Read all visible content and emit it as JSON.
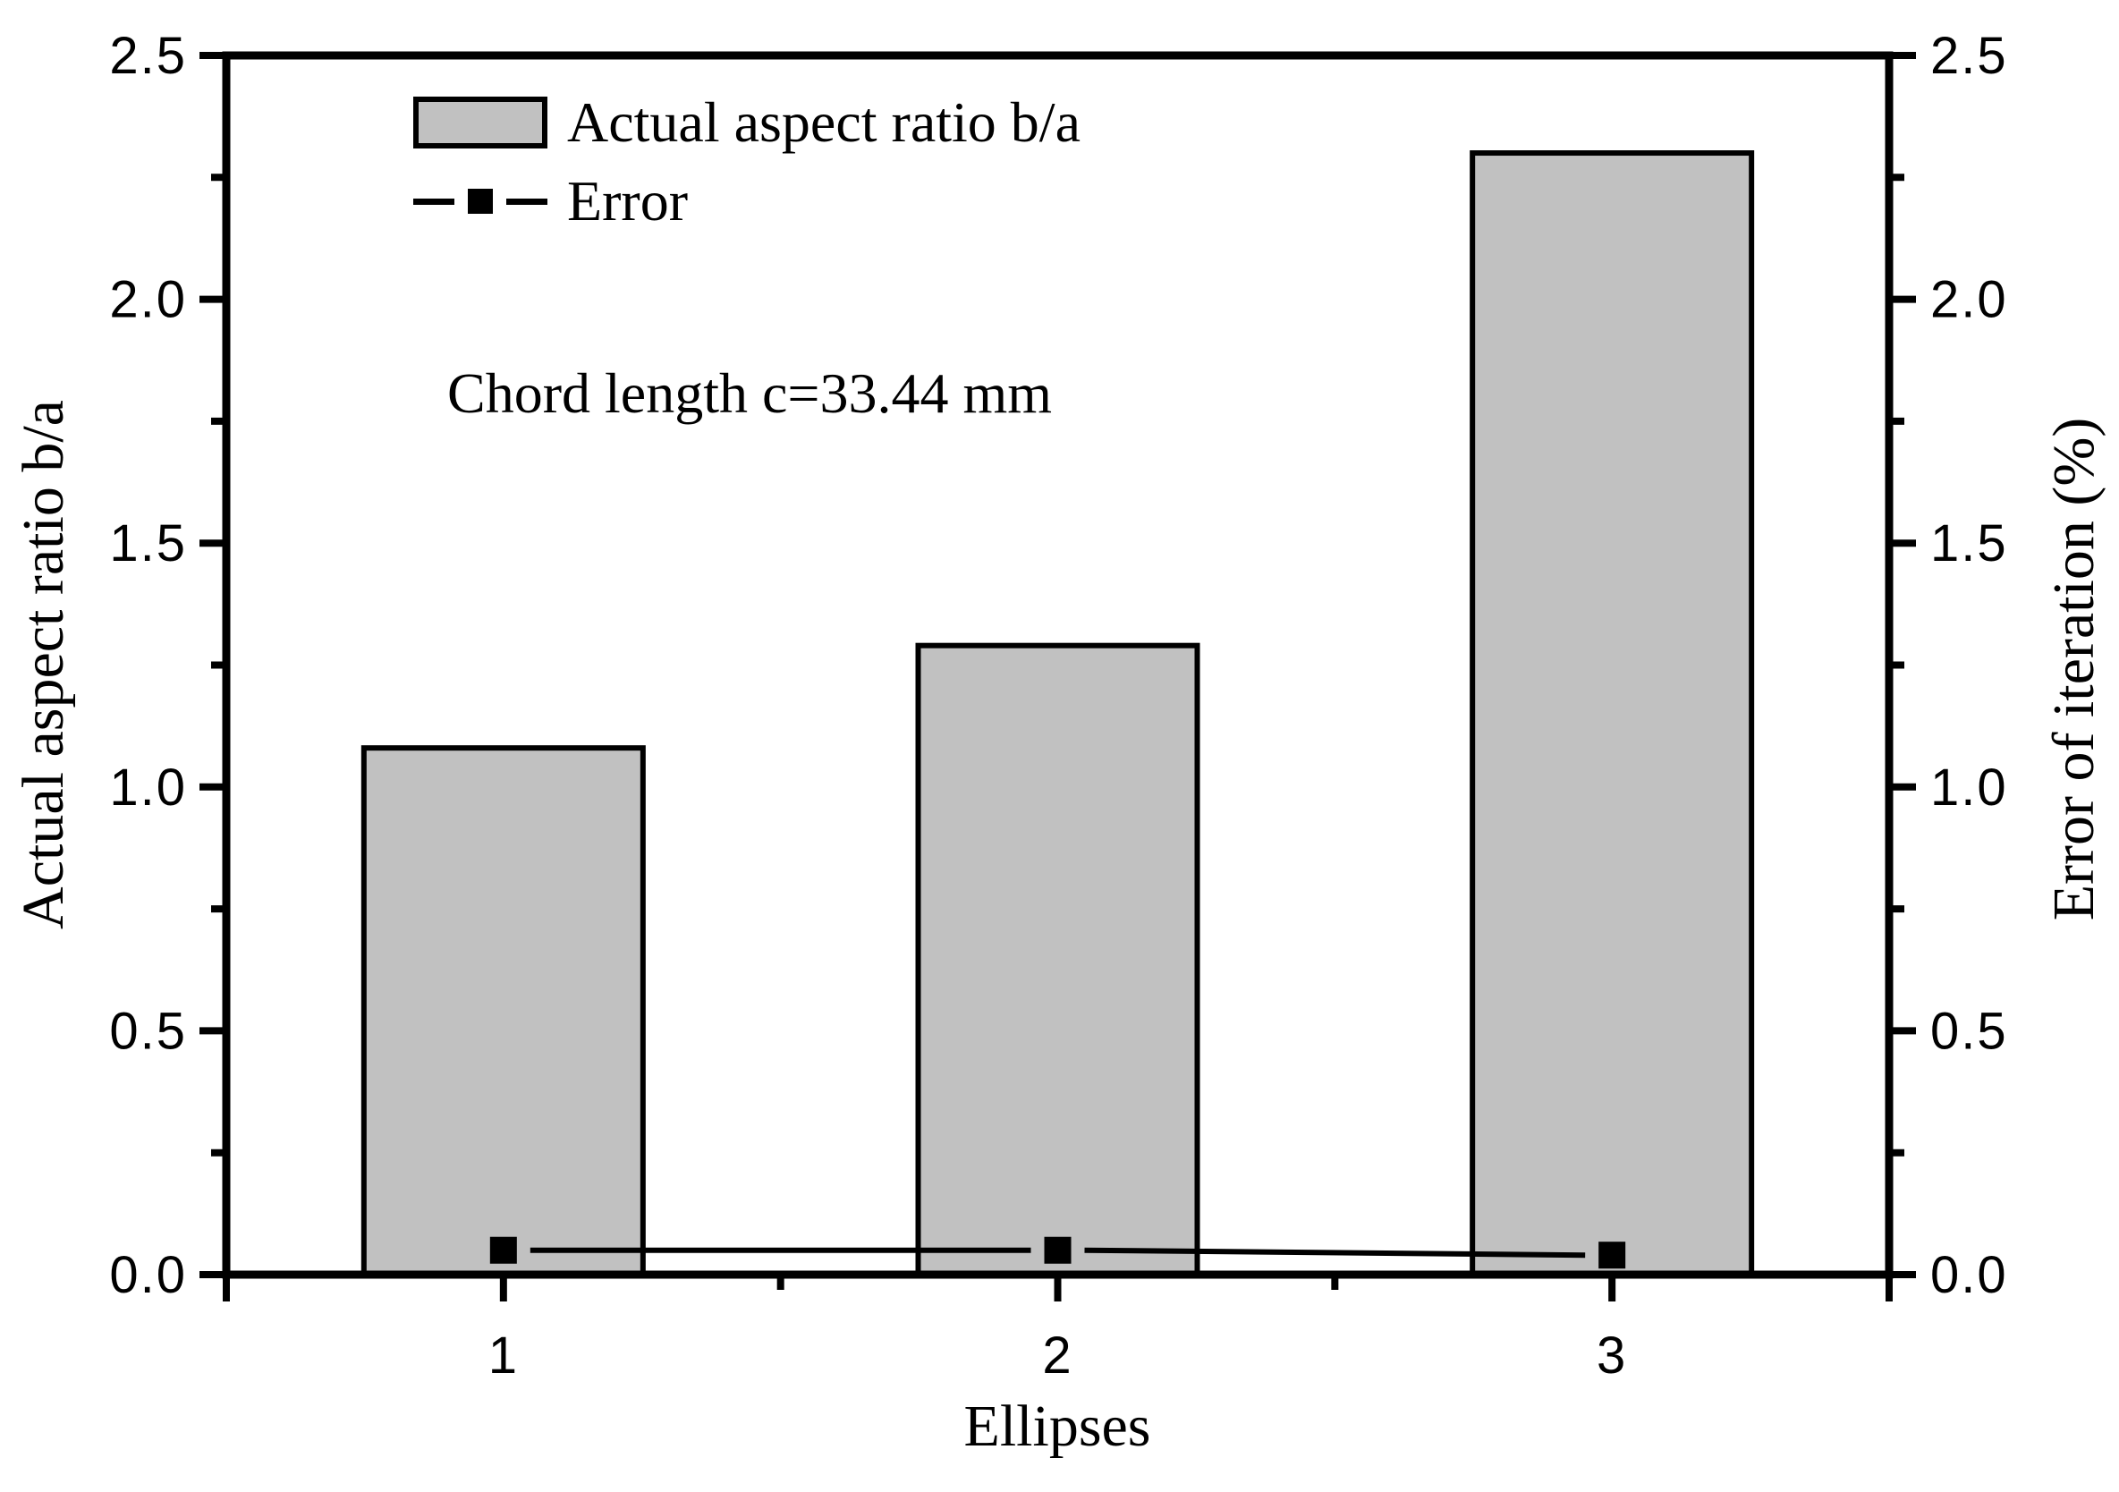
{
  "figure": {
    "left_axis_title": "Actual aspect ratio b/a",
    "right_axis_title": "Error of  iteration (%)",
    "x_axis_title": "Ellipses",
    "annotation": "Chord length c=33.44 mm"
  },
  "legend": {
    "items": [
      {
        "label": "Actual aspect ratio b/a",
        "swatch": "bar-swatch"
      },
      {
        "label": "Error",
        "swatch": "line-marker-swatch"
      }
    ]
  },
  "chart_data": {
    "type": "bar",
    "categories": [
      "1",
      "2",
      "3"
    ],
    "series": [
      {
        "name": "Actual aspect ratio b/a",
        "type": "bar",
        "axis": "left",
        "values": [
          1.08,
          1.29,
          2.3
        ]
      },
      {
        "name": "Error",
        "type": "line",
        "axis": "right",
        "marker": "square",
        "values": [
          0.05,
          0.05,
          0.04
        ]
      }
    ],
    "xlabel": "Ellipses",
    "ylabel_left": "Actual aspect ratio b/a",
    "ylabel_right": "Error of  iteration (%)",
    "left_axis": {
      "min": 0.0,
      "max": 2.5,
      "major_step": 0.5,
      "minor_step": 0.25,
      "major_tick_labels": [
        "0.0",
        "0.5",
        "1.0",
        "1.5",
        "2.0",
        "2.5"
      ]
    },
    "right_axis": {
      "min": 0.0,
      "max": 2.5,
      "major_step": 0.5,
      "minor_step": 0.25,
      "major_tick_labels": [
        "0.0",
        "0.5",
        "1.0",
        "1.5",
        "2.0",
        "2.5"
      ]
    },
    "annotation": "Chord length c=33.44 mm",
    "grid": false,
    "legend_position": "top-left-inside"
  },
  "colors": {
    "background": "#ffffff",
    "bar_fill": "#c1c1c1",
    "bar_edge": "#000000",
    "line": "#000000",
    "marker": "#000000",
    "axis": "#000000",
    "text": "#000000"
  }
}
